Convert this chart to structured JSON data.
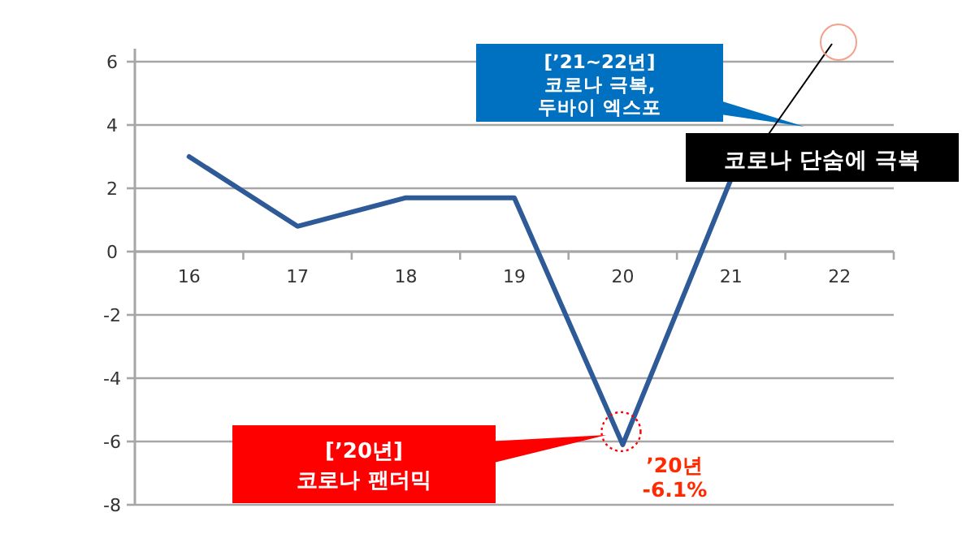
{
  "chart_data": {
    "type": "line",
    "categories": [
      "16",
      "17",
      "18",
      "19",
      "20",
      "21",
      "22"
    ],
    "series": [
      {
        "color": "#2e5a97",
        "values": [
          3,
          0.8,
          1.7,
          1.7,
          -6.1,
          2.3,
          null
        ]
      }
    ],
    "ylim": [
      -8,
      6
    ],
    "yticks": [
      -8,
      -6,
      -4,
      -2,
      0,
      2,
      4,
      6
    ],
    "grid": "y",
    "marker": "none",
    "line_style": "solid",
    "annotations": [
      {
        "text": "[’21~22년]\n코로나 극복,\n두바이 엑스포"
      },
      {
        "text": "코로나 단숨에 극복"
      },
      {
        "text": "[’20년]\n코로나 팬더믹"
      },
      {
        "text": "’20년\n-6.1%",
        "x": "20",
        "y": -6.1
      }
    ]
  }
}
